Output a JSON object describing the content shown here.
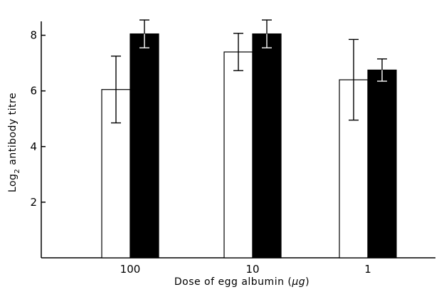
{
  "chart_data": {
    "type": "bar",
    "xlabel_prefix": "Dose of egg albumin (",
    "xlabel_unit": "μg",
    "xlabel_suffix": ")",
    "ylabel_prefix": "Log",
    "ylabel_sub": "2",
    "ylabel_suffix": " antibody titre",
    "categories": [
      "100",
      "10",
      "1"
    ],
    "ylim": [
      0,
      8.5
    ],
    "yticks": [
      {
        "value": 2,
        "label": "2"
      },
      {
        "value": 4,
        "label": "4"
      },
      {
        "value": 6,
        "label": "6"
      },
      {
        "value": 8,
        "label": "8"
      }
    ],
    "series": [
      {
        "fill": "#ffffff",
        "values": [
          6.05,
          7.4,
          6.4
        ],
        "errors": [
          1.2,
          0.67,
          1.45
        ]
      },
      {
        "fill": "#000000",
        "values": [
          8.05,
          8.05,
          6.75
        ],
        "errors": [
          0.5,
          0.5,
          0.4
        ]
      }
    ],
    "grid": false
  }
}
